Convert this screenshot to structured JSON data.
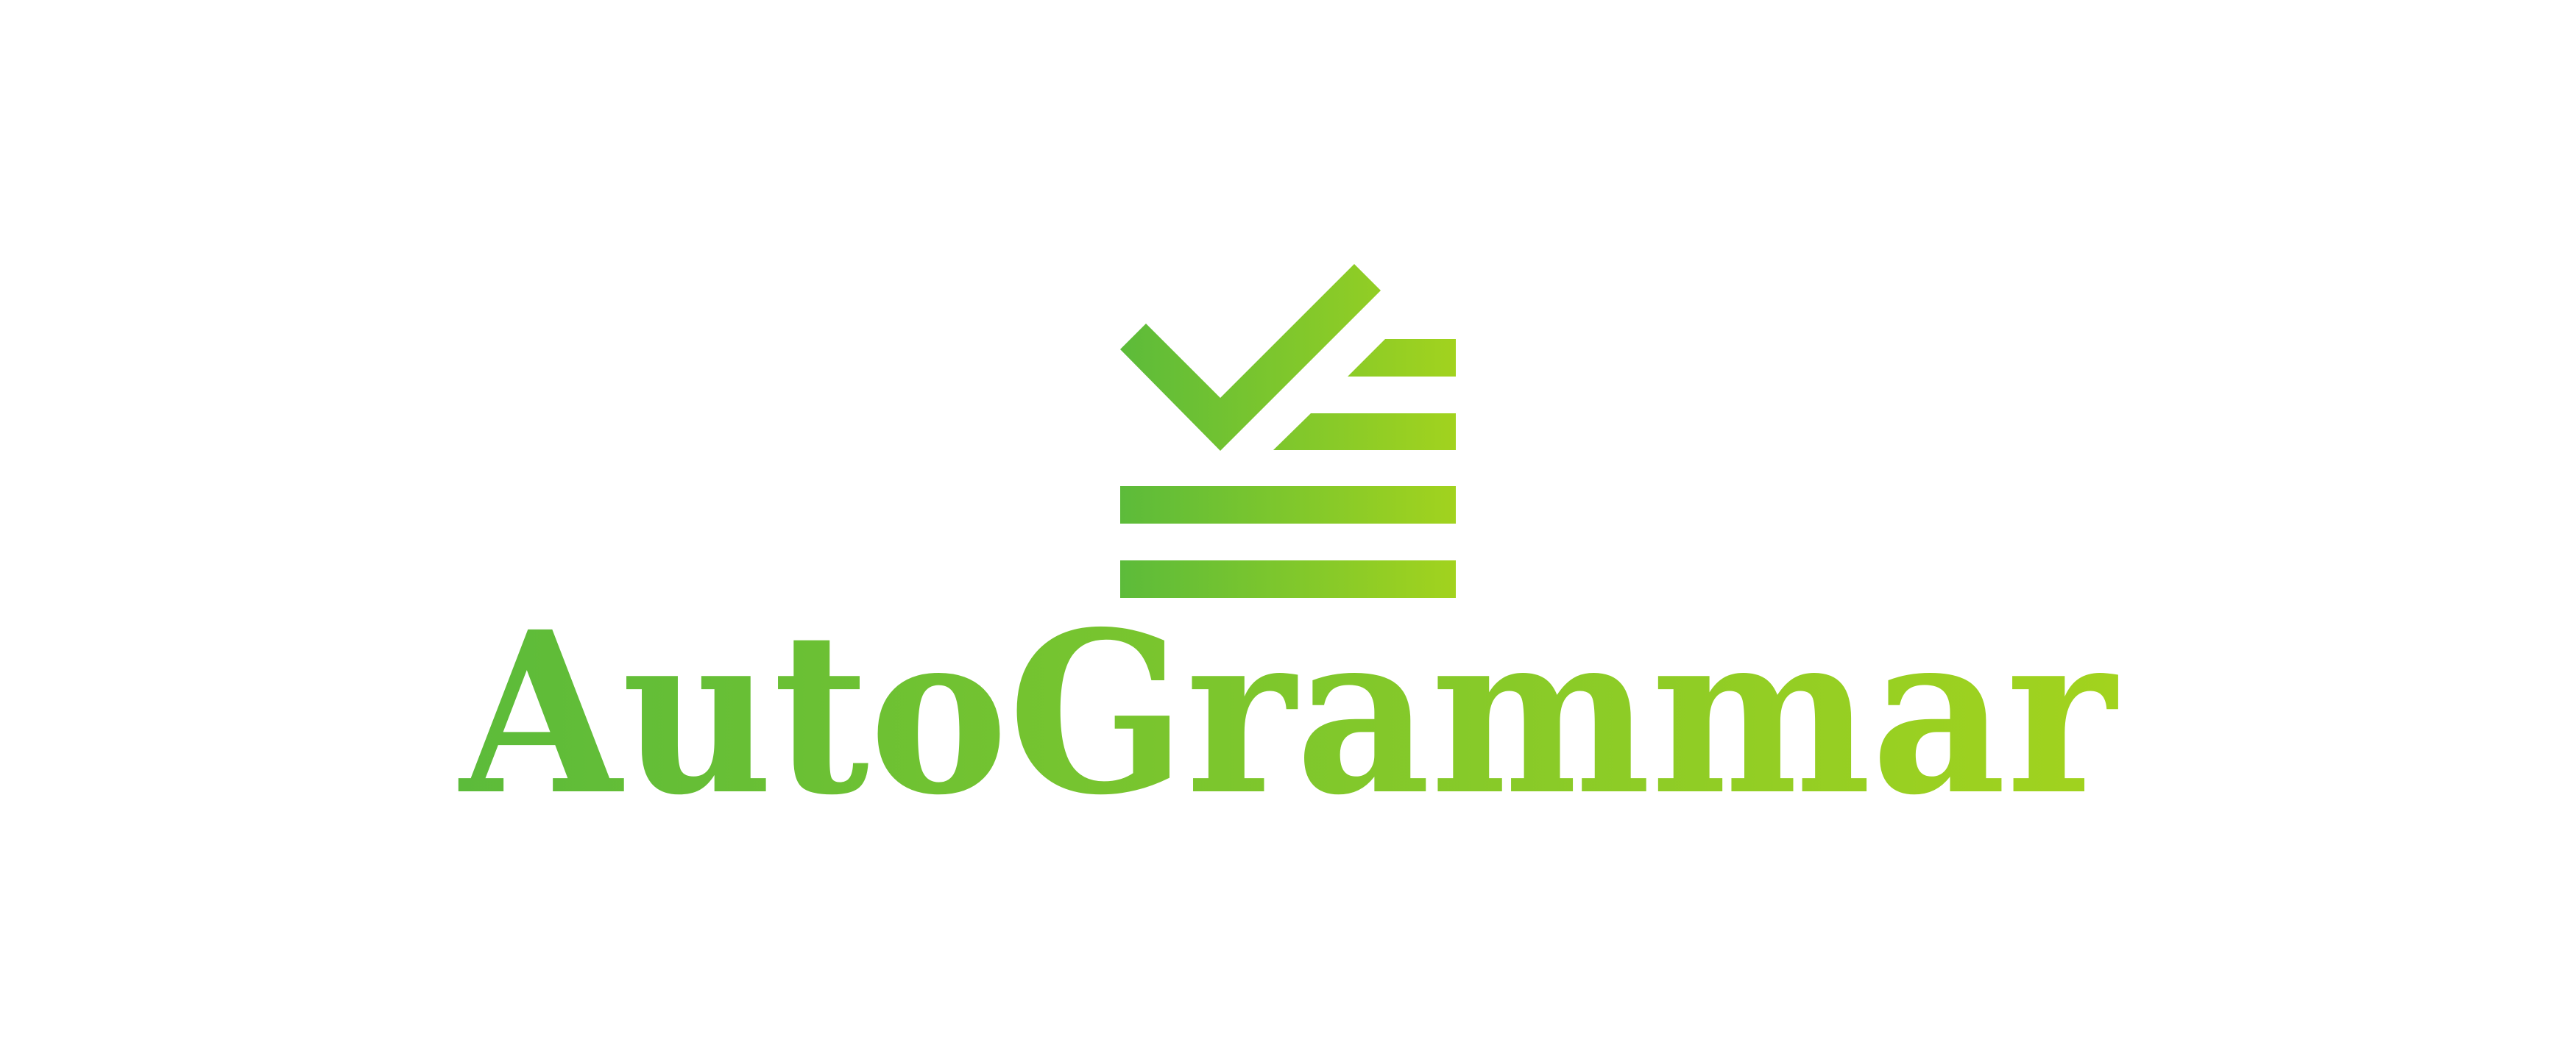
{
  "logo": {
    "wordmark": "AutoGrammar",
    "icon": "checklist-check-icon",
    "gradient_start": "#5CBB3A",
    "gradient_end": "#A2D31E"
  }
}
